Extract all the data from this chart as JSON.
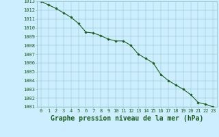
{
  "x": [
    0,
    1,
    2,
    3,
    4,
    5,
    6,
    7,
    8,
    9,
    10,
    11,
    12,
    13,
    14,
    15,
    16,
    17,
    18,
    19,
    20,
    21,
    22,
    23
  ],
  "y": [
    1013.0,
    1012.6,
    1012.2,
    1011.7,
    1011.2,
    1010.5,
    1009.5,
    1009.4,
    1009.1,
    1008.7,
    1008.5,
    1008.5,
    1008.0,
    1007.0,
    1006.5,
    1006.0,
    1004.7,
    1004.0,
    1003.5,
    1003.0,
    1002.4,
    1001.5,
    1001.3,
    1001.0
  ],
  "ylim": [
    1001,
    1013
  ],
  "xlim": [
    -0.5,
    23.5
  ],
  "yticks": [
    1001,
    1002,
    1003,
    1004,
    1005,
    1006,
    1007,
    1008,
    1009,
    1010,
    1011,
    1012,
    1013
  ],
  "xticks": [
    0,
    1,
    2,
    3,
    4,
    5,
    6,
    7,
    8,
    9,
    10,
    11,
    12,
    13,
    14,
    15,
    16,
    17,
    18,
    19,
    20,
    21,
    22,
    23
  ],
  "xlabel": "Graphe pression niveau de la mer (hPa)",
  "line_color": "#1a5c1a",
  "marker": "D",
  "marker_size": 1.8,
  "bg_color": "#cceeff",
  "grid_color": "#88bbbb",
  "tick_label_color": "#1a5c1a",
  "xlabel_color": "#1a5c1a",
  "tick_fontsize": 5,
  "xlabel_fontsize": 7,
  "linewidth": 0.8
}
